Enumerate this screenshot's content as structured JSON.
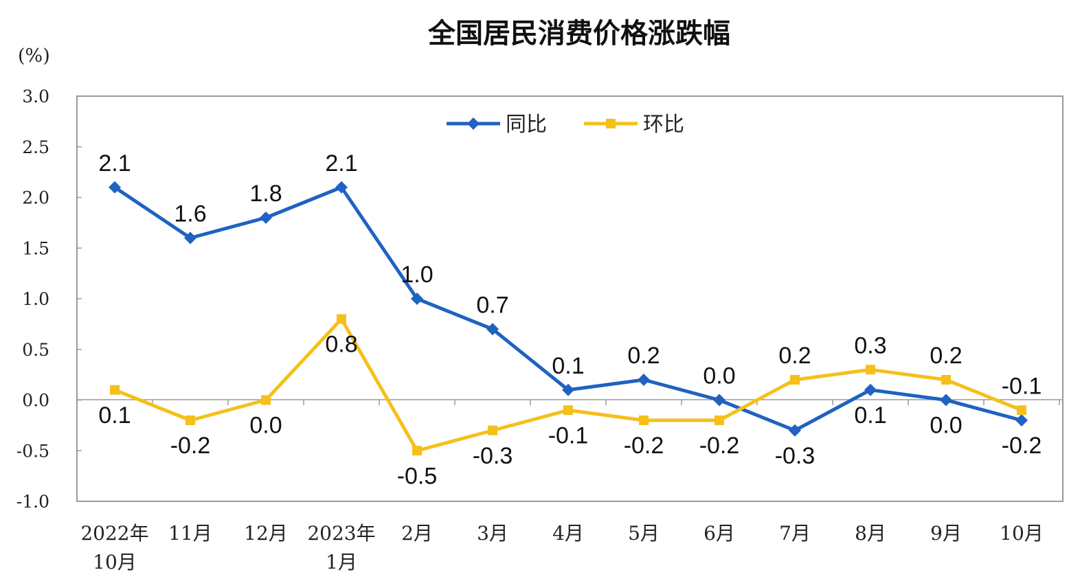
{
  "chart_data": {
    "type": "line",
    "title": "全国居民消费价格涨跌幅",
    "unit_label": "(%)",
    "ylim": [
      -1.0,
      3.0
    ],
    "yticks": [
      "3.0",
      "2.5",
      "2.0",
      "1.5",
      "1.0",
      "0.5",
      "0.0",
      "-0.5",
      "-1.0"
    ],
    "ytick_values": [
      3.0,
      2.5,
      2.0,
      1.5,
      1.0,
      0.5,
      0.0,
      -0.5,
      -1.0
    ],
    "categories": [
      [
        "2022年",
        "10月"
      ],
      [
        "11月"
      ],
      [
        "12月"
      ],
      [
        "2023年",
        "1月"
      ],
      [
        "2月"
      ],
      [
        "3月"
      ],
      [
        "4月"
      ],
      [
        "5月"
      ],
      [
        "6月"
      ],
      [
        "7月"
      ],
      [
        "8月"
      ],
      [
        "9月"
      ],
      [
        "10月"
      ]
    ],
    "grid": false,
    "legend_position": "top-center",
    "series": [
      {
        "name": "同比",
        "color": "#1f62c1",
        "marker": "diamond",
        "values": [
          2.1,
          1.6,
          1.8,
          2.1,
          1.0,
          0.7,
          0.1,
          0.2,
          0.0,
          -0.3,
          0.1,
          0.0,
          -0.2
        ],
        "labels": [
          "2.1",
          "1.6",
          "1.8",
          "2.1",
          "1.0",
          "0.7",
          "0.1",
          "0.2",
          "0.0",
          "-0.3",
          "0.1",
          "0.0",
          "-0.2"
        ],
        "label_side": [
          "above",
          "above",
          "above",
          "above",
          "above",
          "above",
          "above",
          "above",
          "above",
          "below",
          "below",
          "below",
          "below"
        ]
      },
      {
        "name": "环比",
        "color": "#f5c01a",
        "marker": "square",
        "values": [
          0.1,
          -0.2,
          0.0,
          0.8,
          -0.5,
          -0.3,
          -0.1,
          -0.2,
          -0.2,
          0.2,
          0.3,
          0.2,
          -0.1
        ],
        "labels": [
          "0.1",
          "-0.2",
          "0.0",
          "0.8",
          "-0.5",
          "-0.3",
          "-0.1",
          "-0.2",
          "-0.2",
          "0.2",
          "0.3",
          "0.2",
          "-0.1"
        ],
        "label_side": [
          "below",
          "below",
          "below",
          "below",
          "below",
          "below",
          "below",
          "below",
          "below",
          "above",
          "above",
          "above",
          "above"
        ]
      }
    ]
  }
}
